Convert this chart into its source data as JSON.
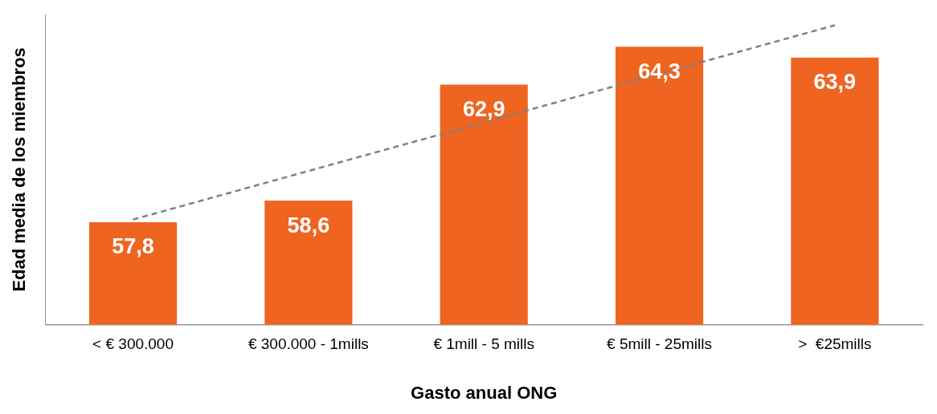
{
  "chart_data": {
    "type": "bar",
    "xlabel": "Gasto anual ONG",
    "ylabel": "Edad media de los miembros",
    "categories": [
      "< € 300.000",
      "€ 300.000 - 1mills",
      "€ 1mill - 5 mills",
      "€ 5mill - 25mills",
      ">  €25mills"
    ],
    "series": [
      {
        "color": "#ee6420",
        "values": [
          57.8,
          58.6,
          62.9,
          64.3,
          63.9
        ],
        "value_labels": [
          "57,8",
          "58,6",
          "62,9",
          "64,3",
          "63,9"
        ]
      },
      {
        "type": "line",
        "color": "#808080",
        "line_style": "dashed",
        "marker": "none",
        "values": [
          57.9,
          59.7,
          61.5,
          63.3,
          65.1
        ]
      }
    ],
    "ylim": [
      54,
      65.5
    ],
    "tick_labels": "x",
    "grid": false,
    "legend": false
  }
}
